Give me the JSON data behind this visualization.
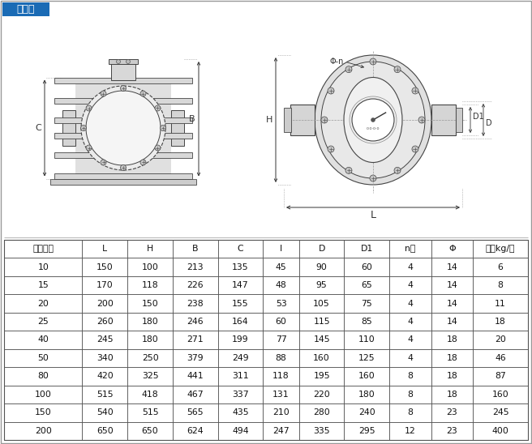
{
  "title": "铸铁型",
  "title_bg": "#1a6bb5",
  "title_fg": "#ffffff",
  "table_headers": [
    "公称通径",
    "L",
    "H",
    "B",
    "C",
    "I",
    "D",
    "D1",
    "n个",
    "Φ",
    "重量kg/台"
  ],
  "table_data": [
    [
      10,
      150,
      100,
      213,
      135,
      45,
      90,
      60,
      4,
      14,
      6
    ],
    [
      15,
      170,
      118,
      226,
      147,
      48,
      95,
      65,
      4,
      14,
      8
    ],
    [
      20,
      200,
      150,
      238,
      155,
      53,
      105,
      75,
      4,
      14,
      11
    ],
    [
      25,
      260,
      180,
      246,
      164,
      60,
      115,
      85,
      4,
      14,
      18
    ],
    [
      40,
      245,
      180,
      271,
      199,
      77,
      145,
      110,
      4,
      18,
      20
    ],
    [
      50,
      340,
      250,
      379,
      249,
      88,
      160,
      125,
      4,
      18,
      46
    ],
    [
      80,
      420,
      325,
      441,
      311,
      118,
      195,
      160,
      8,
      18,
      87
    ],
    [
      100,
      515,
      418,
      467,
      337,
      131,
      220,
      180,
      8,
      18,
      160
    ],
    [
      150,
      540,
      515,
      565,
      435,
      210,
      280,
      240,
      8,
      23,
      245
    ],
    [
      200,
      650,
      650,
      624,
      494,
      247,
      335,
      295,
      12,
      23,
      400
    ]
  ],
  "bg_color": "#ffffff",
  "line_color": "#444444",
  "dim_color": "#333333"
}
